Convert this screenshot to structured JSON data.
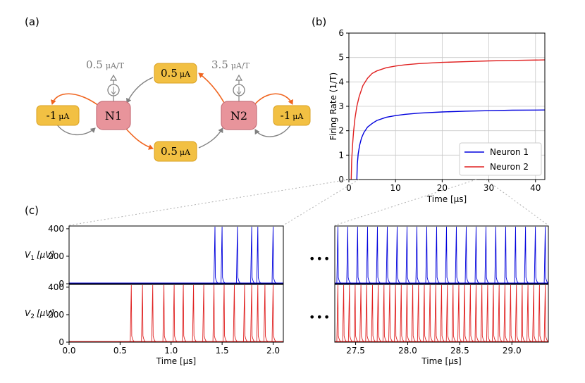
{
  "panels": {
    "a": "(a)",
    "b": "(b)",
    "c": "(c)"
  },
  "colors": {
    "neuron_fill": "#e8949b",
    "neuron_stroke": "#c8707a",
    "synapse_fill": "#f2c043",
    "synapse_stroke": "#d9a020",
    "excitatory_arrow": "#f0641e",
    "inhibitory_arrow": "#808080",
    "neuron1": "#0000dd",
    "neuron2": "#e02020",
    "grid": "#c8c8c8",
    "dotted": "#b0b0b0",
    "ellipsis": "#777777"
  },
  "diagram": {
    "neurons": [
      {
        "id": "n1",
        "label": "N1"
      },
      {
        "id": "n2",
        "label": "N2"
      }
    ],
    "synapses": {
      "self1": {
        "value": "-1",
        "unit": "μA"
      },
      "top": {
        "value": "0.5",
        "unit": "μA"
      },
      "bottom": {
        "value": "0.5",
        "unit": "μA"
      },
      "self2": {
        "value": "-1",
        "unit": "μA"
      }
    },
    "inputs": {
      "n1": {
        "value": "0.5",
        "unit": "μA/T"
      },
      "n2": {
        "value": "3.5",
        "unit": "μA/T"
      }
    }
  },
  "chart_data": [
    {
      "id": "b",
      "type": "line",
      "xlabel": "Time [μs]",
      "ylabel": "Firing Rate (1/T)",
      "xlim": [
        0,
        42
      ],
      "ylim": [
        0,
        6
      ],
      "xticks": [
        0,
        10,
        20,
        30,
        40
      ],
      "yticks": [
        0,
        1,
        2,
        3,
        4,
        5,
        6
      ],
      "grid": true,
      "legend": "bottom-right",
      "series": [
        {
          "name": "Neuron 1",
          "x": [
            1.7,
            1.8,
            2,
            2.3,
            2.7,
            3.2,
            4,
            5,
            6,
            8,
            10,
            12,
            15,
            20,
            25,
            30,
            35,
            42
          ],
          "y": [
            0,
            0.6,
            1.05,
            1.4,
            1.7,
            1.92,
            2.15,
            2.3,
            2.42,
            2.55,
            2.62,
            2.67,
            2.72,
            2.77,
            2.8,
            2.82,
            2.84,
            2.85
          ]
        },
        {
          "name": "Neuron 2",
          "x": [
            0.5,
            0.6,
            0.8,
            1,
            1.3,
            1.7,
            2.2,
            3,
            4,
            5,
            6,
            8,
            10,
            12,
            15,
            20,
            25,
            30,
            35,
            42
          ],
          "y": [
            0,
            0.8,
            1.45,
            1.95,
            2.5,
            3,
            3.4,
            3.85,
            4.15,
            4.35,
            4.45,
            4.58,
            4.65,
            4.7,
            4.75,
            4.8,
            4.83,
            4.86,
            4.88,
            4.9
          ]
        }
      ]
    },
    {
      "id": "c-left",
      "type": "line",
      "xlabel": "Time [μs]",
      "xlim": [
        0,
        2.1
      ],
      "xticks": [
        "0.0",
        "0.5",
        "1.0",
        "1.5",
        "2.0"
      ],
      "rows": [
        {
          "ylabel_main": "V",
          "ylabel_sub": "1",
          "ylabel_unit": "[μV]",
          "ylim": [
            0,
            420
          ],
          "yticks": [
            0,
            200,
            400
          ],
          "name": "Neuron 1",
          "spike_height": 415,
          "spikes": [
            1.43,
            1.5,
            1.65,
            1.79,
            1.85,
            2.0
          ]
        },
        {
          "ylabel_main": "V",
          "ylabel_sub": "2",
          "ylabel_unit": "[μV]",
          "ylim": [
            0,
            420
          ],
          "yticks": [
            0,
            200,
            400
          ],
          "name": "Neuron 2",
          "spike_height": 415,
          "spikes": [
            0.61,
            0.72,
            0.82,
            0.93,
            1.03,
            1.12,
            1.22,
            1.32,
            1.42,
            1.52,
            1.62,
            1.72,
            1.79,
            1.85,
            1.92,
            2.0
          ]
        }
      ]
    },
    {
      "id": "c-right",
      "type": "line",
      "xlabel": "Time [μs]",
      "xlim": [
        27.3,
        29.35
      ],
      "xticks": [
        "27.5",
        "28.0",
        "28.5",
        "29.0"
      ],
      "rows": [
        {
          "name": "Neuron 1",
          "spike_height": 415,
          "spike_count": 22
        },
        {
          "name": "Neuron 2",
          "spike_height": 415,
          "spike_count": 37
        }
      ]
    }
  ],
  "legend": {
    "neuron1": "Neuron 1",
    "neuron2": "Neuron 2"
  },
  "ellipsis": "•••"
}
